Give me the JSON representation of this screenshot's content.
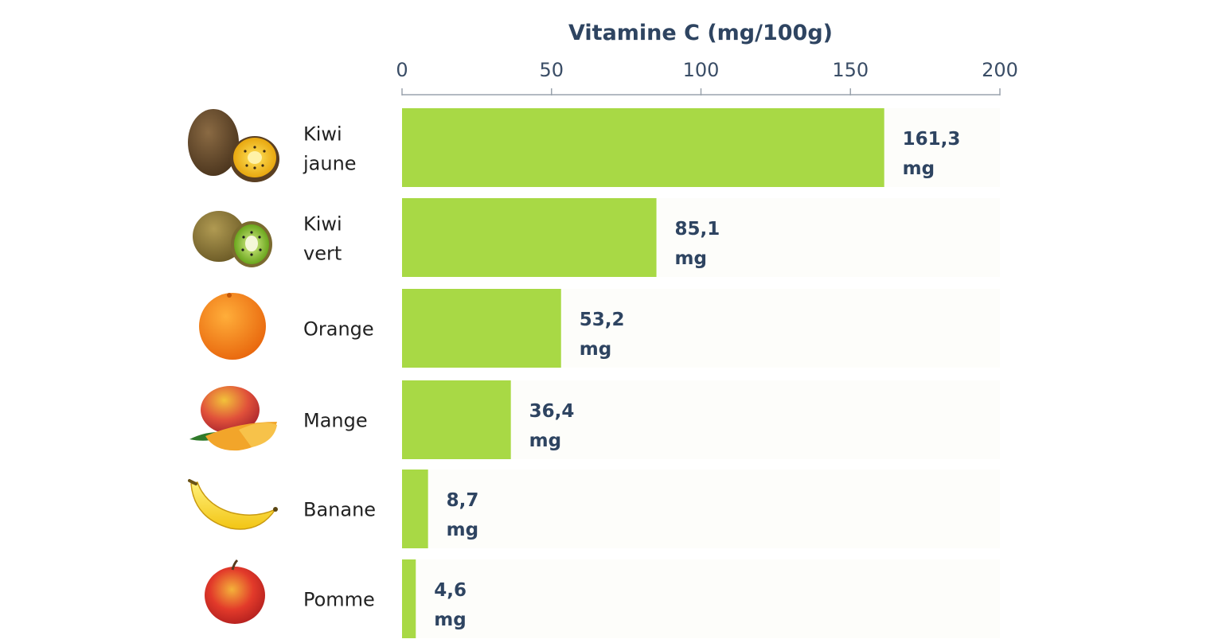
{
  "chart_data": {
    "type": "bar",
    "orientation": "horizontal",
    "title": "Vitamine C (mg/100g)",
    "xlim": [
      0,
      200
    ],
    "ticks": [
      "0",
      "50",
      "100",
      "150",
      "200"
    ],
    "categories": [
      [
        "Kiwi",
        "jaune"
      ],
      [
        "Kiwi",
        "vert"
      ],
      [
        "Orange"
      ],
      [
        "Mange"
      ],
      [
        "Banane"
      ],
      [
        "Pomme"
      ]
    ],
    "icons": [
      "yellow-kiwi-icon",
      "green-kiwi-icon",
      "orange-icon",
      "mango-icon",
      "banana-icon",
      "apple-icon"
    ],
    "values": [
      161.3,
      85.1,
      53.2,
      36.4,
      8.7,
      4.6
    ],
    "value_labels": [
      [
        "161,3",
        "mg"
      ],
      [
        "85,1",
        "mg"
      ],
      [
        "53,2",
        "mg"
      ],
      [
        "36,4",
        "mg"
      ],
      [
        "8,7",
        "mg"
      ],
      [
        "4,6",
        "mg"
      ]
    ],
    "colors": {
      "bar": "#a8d945",
      "text": "#2e4461",
      "axis": "#9aa3ad",
      "track": "#fdfdfa"
    }
  }
}
